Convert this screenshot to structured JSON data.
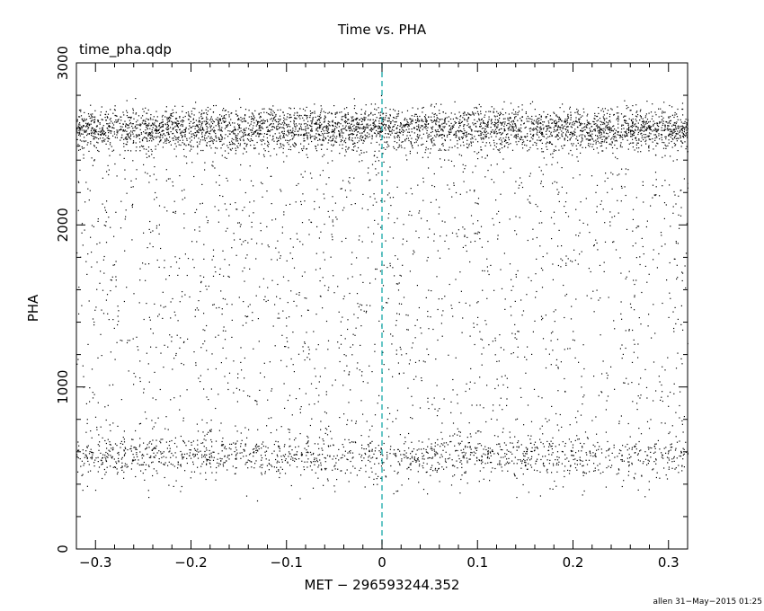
{
  "chart_data": {
    "type": "scatter",
    "title": "Time vs. PHA",
    "subtitle": "time_pha.qdp",
    "xlabel": "MET − 296593244.352",
    "ylabel": "PHA",
    "xlim": [
      -0.32,
      0.32
    ],
    "ylim": [
      0,
      3000
    ],
    "xticks": [
      -0.3,
      -0.2,
      -0.1,
      0,
      0.1,
      0.2,
      0.3
    ],
    "xtick_labels": [
      "−0.3",
      "−0.2",
      "−0.1",
      "0",
      "0.1",
      "0.2",
      "0.3"
    ],
    "yticks": [
      0,
      1000,
      2000,
      3000
    ],
    "ytick_labels": [
      "0",
      "1000",
      "2000",
      "3000"
    ],
    "reference_line": {
      "x": 0,
      "style": "dashed",
      "color": "#00a0a0"
    },
    "grid": false,
    "series": [
      {
        "description": "events",
        "density_bands": [
          {
            "pha_center": 2600,
            "pha_spread": 90,
            "share": 0.52
          },
          {
            "pha_center": 580,
            "pha_spread": 85,
            "share": 0.18
          },
          {
            "pha_range": [
              300,
              2600
            ],
            "share": 0.3
          }
        ],
        "color": "#000000"
      }
    ]
  },
  "footer": "allen 31−May−2015 01:25"
}
